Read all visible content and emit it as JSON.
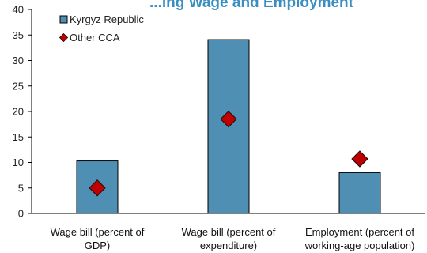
{
  "chart_data": {
    "type": "bar",
    "title": "...ing Wage and Employment",
    "categories": [
      [
        "Wage bill (percent of",
        "GDP)"
      ],
      [
        "Wage bill (percent of",
        "expenditure)"
      ],
      [
        "Employment (percent of",
        "working-age population)"
      ]
    ],
    "series": [
      {
        "name": "Kyrgyz Republic",
        "kind": "bar",
        "values": [
          10.3,
          34.1,
          8.0
        ]
      },
      {
        "name": "Other CCA",
        "kind": "marker",
        "values": [
          5.0,
          18.5,
          10.7
        ]
      }
    ],
    "ylim": [
      0,
      40
    ],
    "yticks": [
      0,
      5,
      10,
      15,
      20,
      25,
      30,
      35,
      40
    ],
    "grid": false,
    "legend": "top-left",
    "colors": {
      "bar": "#4f8fb3",
      "bar_edge": "#000000",
      "marker": "#c00000",
      "marker_edge": "#111111",
      "title": "#3a8ec0"
    }
  }
}
